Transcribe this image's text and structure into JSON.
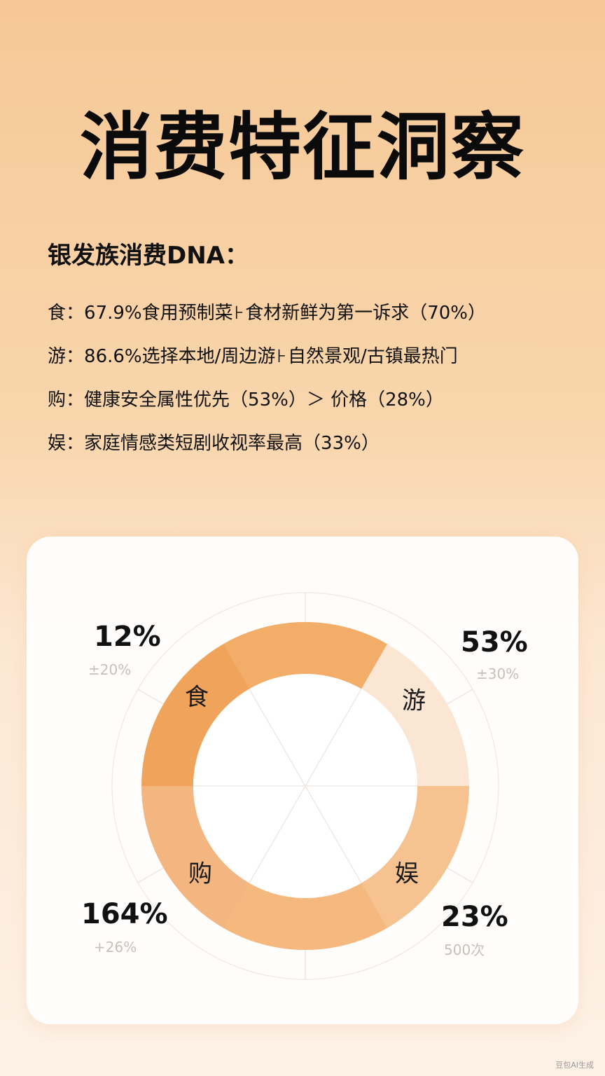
{
  "title": "消费特征洞察",
  "subtitle": "银发族消费DNA：",
  "facts": [
    {
      "key": "食",
      "colon": "：",
      "text": "67.9%食用预制菜",
      "sep": "⊦",
      "text2": "食材新鲜为第一诉求（70%）"
    },
    {
      "key": "游",
      "colon": "：",
      "text": "86.6%选择本地/周边游",
      "sep": "⊦",
      "text2": "自然景观/古镇最热门"
    },
    {
      "key": "购",
      "colon": "：",
      "text": "健康安全属性优先（53%）＞ 价格（28%）",
      "sep": "",
      "text2": ""
    },
    {
      "key": "娱",
      "colon": "：",
      "text": "家庭情感类短剧收视率最高（33%）",
      "sep": "",
      "text2": ""
    }
  ],
  "chart_data": {
    "type": "pie",
    "style": "donut",
    "segments": [
      {
        "label": "食",
        "value_label": "12%",
        "sub_label": "±20%",
        "color": "#f0a35a"
      },
      {
        "label": "游",
        "value_label": "53%",
        "sub_label": "±30%",
        "color": "#fbe6d3"
      },
      {
        "label": "娱",
        "value_label": "23%",
        "sub_label": "500次",
        "color": "#f6c290"
      },
      {
        "label": "购",
        "value_label": "164%",
        "sub_label": "+26%",
        "color": "#f4b680"
      }
    ]
  },
  "colors": {
    "accent": "#f0a35a",
    "background_top": "#f6c896",
    "background_bottom": "#fdf1e6"
  },
  "watermark": "豆包AI生成"
}
